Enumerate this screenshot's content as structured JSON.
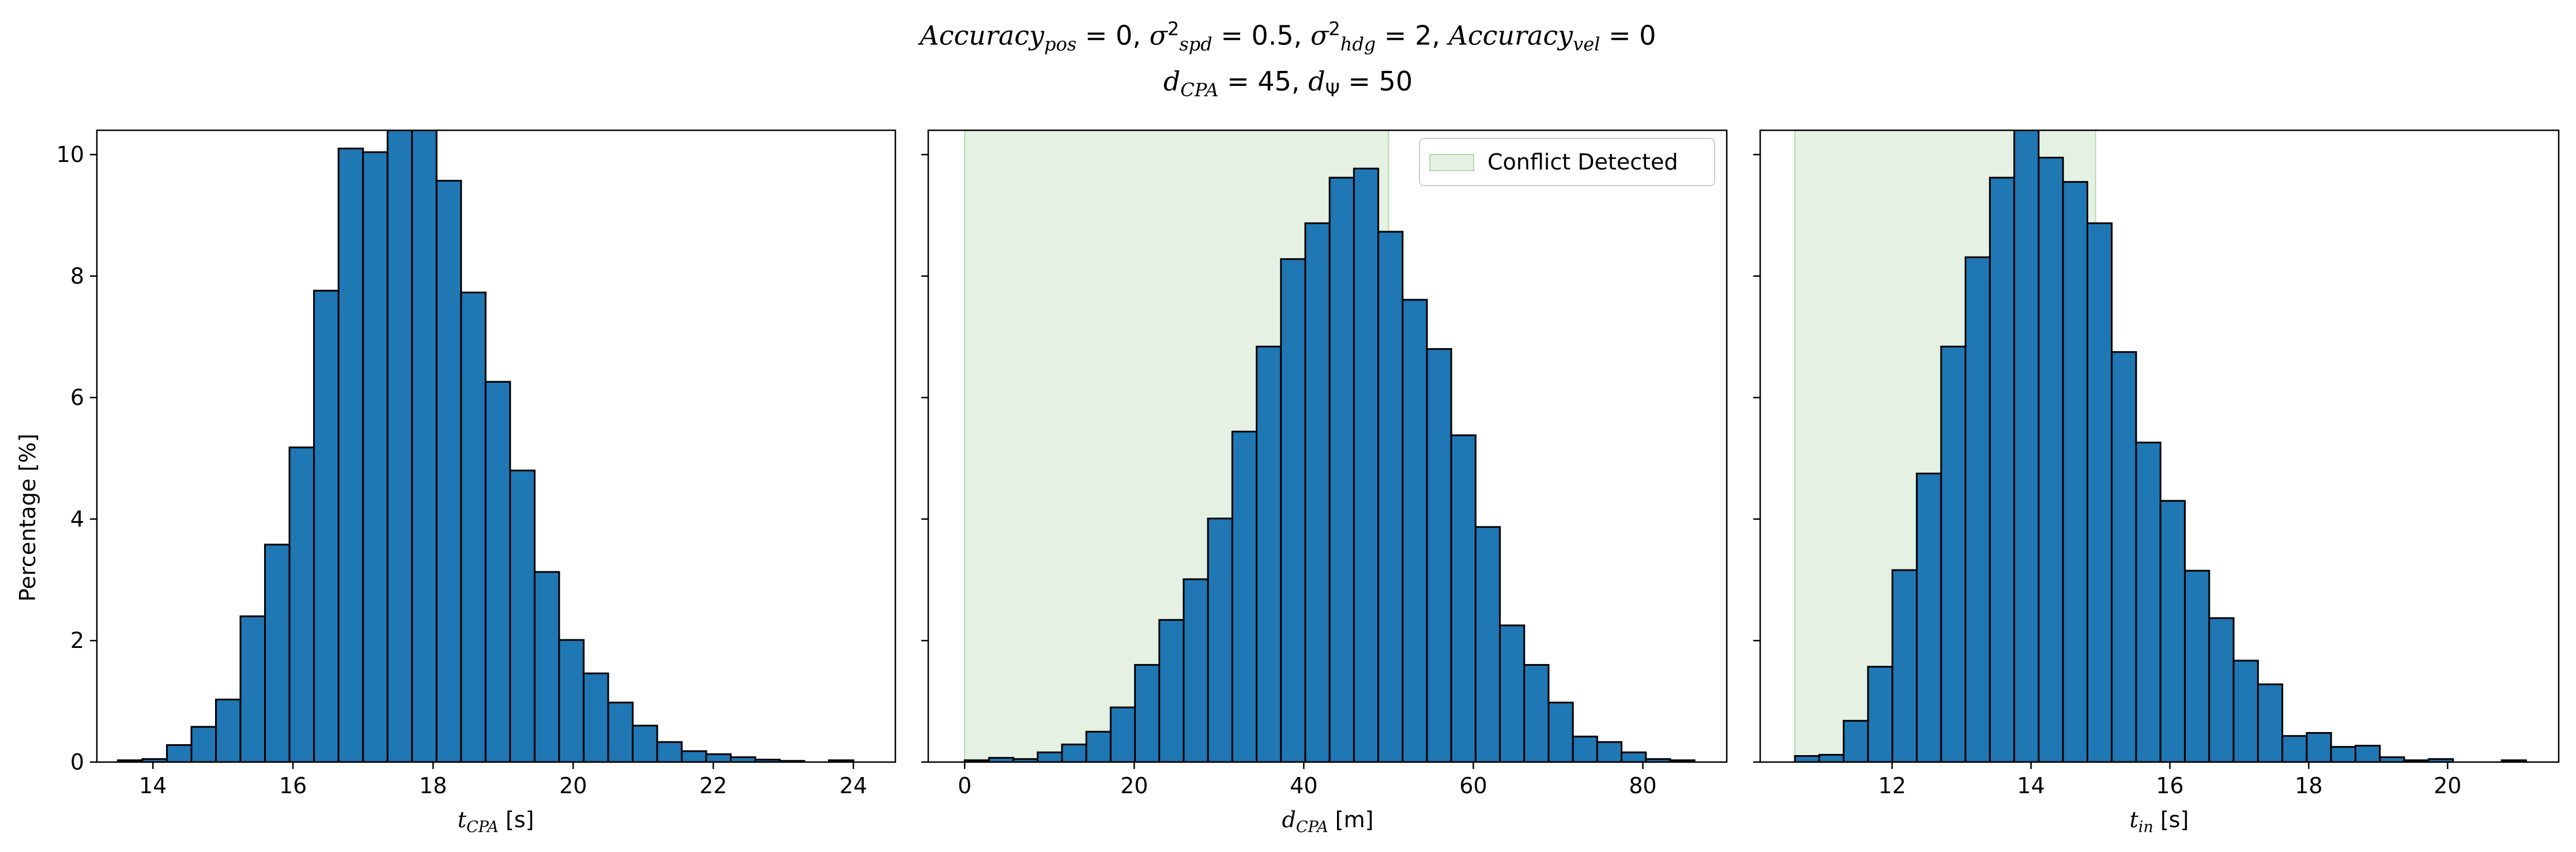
{
  "title": {
    "accuracy_symbol": "Accuracy",
    "pos_sub": "pos",
    "pos_value": "= 0,",
    "sigma_symbol": "σ",
    "sup2": "2",
    "spd_sub": "spd",
    "spd_value": "= 0.5,",
    "hdg_sub": "hdg",
    "hdg_value": "= 2,",
    "vel_sub": "vel",
    "vel_value": "= 0",
    "d_symbol": "d",
    "cpa_sub": "CPA",
    "dcpa_value": "= 45,",
    "psi_sub": "Ψ",
    "dpsi_value": "= 50"
  },
  "ylabel": "Percentage [%]",
  "xlabels": [
    {
      "var": "t",
      "sub": "CPA",
      "unit": "[s]"
    },
    {
      "var": "d",
      "sub": "CPA",
      "unit": "[m]"
    },
    {
      "var": "t",
      "sub": "in",
      "unit": "[s]"
    }
  ],
  "colors": {
    "bar": "#1f77b4",
    "edge": "#000000",
    "shade": "#e5f1e3",
    "shade_edge": "#b5d9b0"
  },
  "chart_data": [
    {
      "type": "bar",
      "xlim": [
        13.2,
        24.6
      ],
      "ylim": [
        0,
        10.4
      ],
      "xticks": [
        14,
        16,
        18,
        20,
        22,
        24
      ],
      "yticks": [
        0,
        2,
        4,
        6,
        8,
        10
      ],
      "bin_start": 13.5,
      "bin_width": 0.35,
      "values": [
        0.03,
        0.05,
        0.28,
        0.58,
        1.03,
        2.4,
        3.58,
        5.18,
        7.76,
        10.1,
        10.04,
        10.4,
        10.4,
        9.57,
        7.73,
        6.26,
        4.8,
        3.13,
        2.01,
        1.46,
        0.98,
        0.6,
        0.33,
        0.18,
        0.13,
        0.08,
        0.04,
        0.02,
        0.0,
        0.03
      ]
    },
    {
      "type": "bar",
      "xlim": [
        -4.3,
        89.9
      ],
      "ylim": [
        0,
        10.4
      ],
      "xticks": [
        0,
        20,
        40,
        60,
        80
      ],
      "yticks": [
        0,
        2,
        4,
        6,
        8,
        10
      ],
      "bin_start": 0,
      "bin_width": 2.87,
      "values": [
        0.03,
        0.07,
        0.05,
        0.16,
        0.29,
        0.5,
        0.9,
        1.6,
        2.34,
        3.01,
        4.01,
        5.44,
        6.84,
        8.28,
        8.87,
        9.62,
        9.77,
        8.73,
        7.61,
        6.8,
        5.38,
        3.87,
        2.25,
        1.6,
        0.98,
        0.42,
        0.33,
        0.16,
        0.05,
        0.03
      ],
      "shade": [
        0,
        50
      ],
      "legend": {
        "label": "Conflict Detected",
        "loc": "upper right"
      }
    },
    {
      "type": "bar",
      "xlim": [
        10.1,
        21.6
      ],
      "ylim": [
        0,
        10.4
      ],
      "xticks": [
        12,
        14,
        16,
        18,
        20
      ],
      "yticks": [
        0,
        2,
        4,
        6,
        8,
        10
      ],
      "bin_start": 10.6,
      "bin_width": 0.351,
      "values": [
        0.1,
        0.12,
        0.68,
        1.57,
        3.16,
        4.75,
        6.84,
        8.31,
        9.62,
        10.4,
        9.95,
        9.55,
        8.87,
        6.75,
        5.26,
        4.3,
        3.15,
        2.37,
        1.67,
        1.28,
        0.43,
        0.48,
        0.25,
        0.27,
        0.08,
        0.03,
        0.05,
        0.0,
        0.0,
        0.03
      ],
      "shade": [
        10.6,
        14.93
      ]
    }
  ]
}
